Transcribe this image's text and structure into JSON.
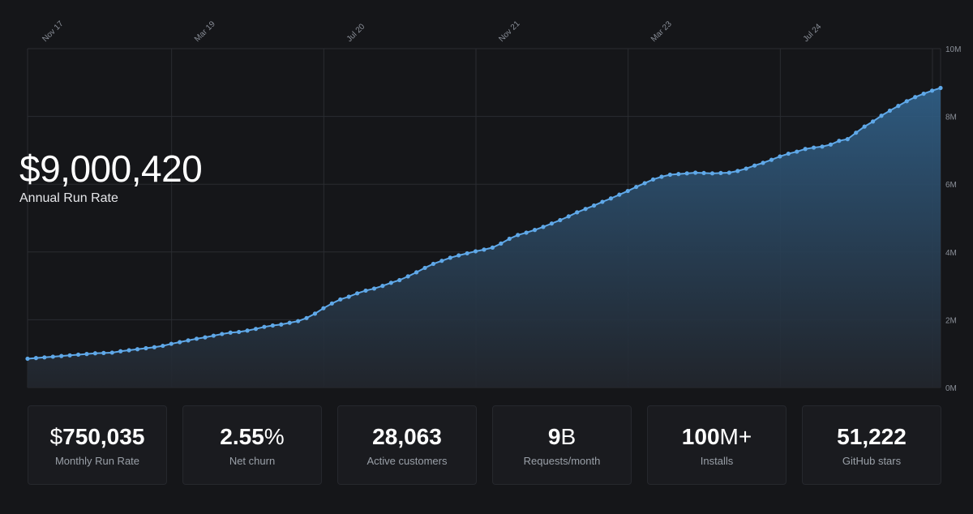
{
  "headline": {
    "currency": "$",
    "value": "9,000,420",
    "label": "Annual Run Rate"
  },
  "metrics": [
    {
      "prefix": "$",
      "value": "750,035",
      "unit": "",
      "label": "Monthly Run Rate"
    },
    {
      "prefix": "",
      "value": "2.55",
      "unit": "%",
      "label": "Net churn"
    },
    {
      "prefix": "",
      "value": "28,063",
      "unit": "",
      "label": "Active customers"
    },
    {
      "prefix": "",
      "value": "9",
      "unit": "B",
      "label": "Requests/month"
    },
    {
      "prefix": "",
      "value": "100",
      "unit": "M+",
      "label": "Installs"
    },
    {
      "prefix": "",
      "value": "51,222",
      "unit": "",
      "label": "GitHub stars"
    }
  ],
  "colors": {
    "line": "#5fa8e8",
    "fill_top": "#2f5d84",
    "background": "#151619",
    "grid": "#2a2c31"
  },
  "chart_data": {
    "type": "area",
    "title": "",
    "xlabel": "",
    "ylabel": "",
    "x_ticks": [
      "Nov 17",
      "Mar 19",
      "Jul 20",
      "Nov 21",
      "Mar 23",
      "Jul 24"
    ],
    "y_ticks": [
      "0M",
      "2M",
      "4M",
      "6M",
      "8M",
      "10M"
    ],
    "ylim": [
      0,
      10000000
    ],
    "grid": true,
    "y_axis_position": "right",
    "x_axis_position": "top",
    "series": [
      {
        "values": [
          850000,
          870000,
          890000,
          910000,
          930000,
          950000,
          970000,
          990000,
          1010000,
          1020000,
          1030000,
          1070000,
          1100000,
          1130000,
          1160000,
          1190000,
          1230000,
          1290000,
          1340000,
          1390000,
          1440000,
          1480000,
          1530000,
          1580000,
          1620000,
          1640000,
          1680000,
          1730000,
          1790000,
          1830000,
          1860000,
          1910000,
          1960000,
          2050000,
          2180000,
          2340000,
          2480000,
          2600000,
          2680000,
          2780000,
          2860000,
          2920000,
          3000000,
          3090000,
          3170000,
          3280000,
          3400000,
          3530000,
          3650000,
          3740000,
          3830000,
          3900000,
          3960000,
          4020000,
          4070000,
          4130000,
          4250000,
          4390000,
          4500000,
          4570000,
          4650000,
          4740000,
          4840000,
          4940000,
          5050000,
          5170000,
          5270000,
          5370000,
          5480000,
          5580000,
          5690000,
          5800000,
          5920000,
          6030000,
          6140000,
          6220000,
          6280000,
          6300000,
          6320000,
          6340000,
          6330000,
          6320000,
          6330000,
          6340000,
          6390000,
          6460000,
          6550000,
          6630000,
          6720000,
          6820000,
          6900000,
          6960000,
          7040000,
          7080000,
          7110000,
          7170000,
          7280000,
          7330000,
          7520000,
          7700000,
          7850000,
          8020000,
          8170000,
          8310000,
          8450000,
          8570000,
          8670000,
          8760000,
          8840000
        ]
      }
    ]
  }
}
